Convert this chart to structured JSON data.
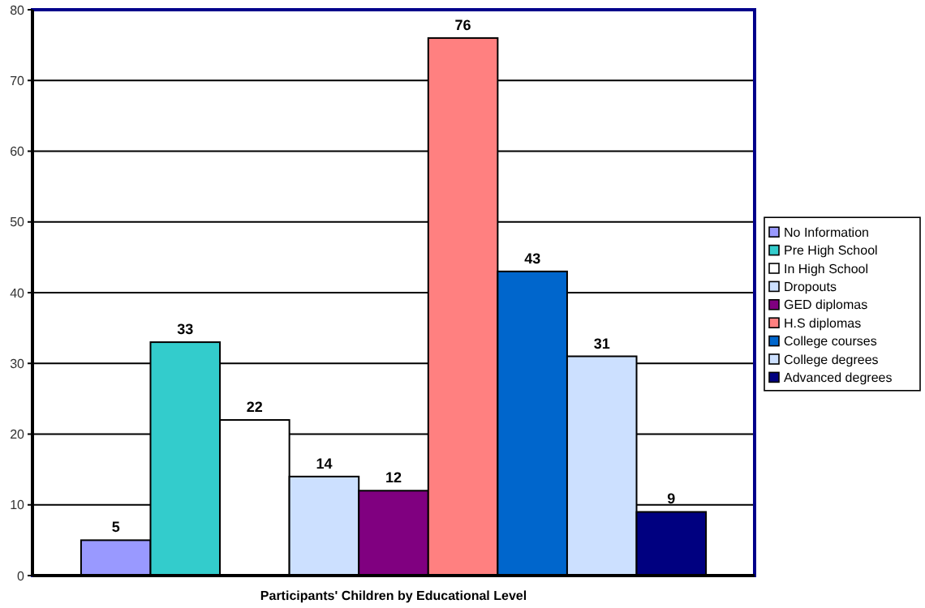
{
  "chart_data": {
    "type": "bar",
    "xlabel": "Participants' Children by Educational Level",
    "categories": [
      null
    ],
    "series": [
      {
        "name": "No Information",
        "color": "#9999ff",
        "values": [
          5
        ]
      },
      {
        "name": "Pre High School",
        "color": "#33cccc",
        "values": [
          33
        ]
      },
      {
        "name": "In High School",
        "color": "#ffffff",
        "values": [
          22
        ]
      },
      {
        "name": "Dropouts",
        "color": "#cce0ff",
        "values": [
          14
        ]
      },
      {
        "name": "GED diplomas",
        "color": "#800080",
        "values": [
          12
        ]
      },
      {
        "name": "H.S diplomas",
        "color": "#ff8080",
        "values": [
          76
        ]
      },
      {
        "name": "College courses",
        "color": "#0066cc",
        "values": [
          43
        ]
      },
      {
        "name": "College degrees",
        "color": "#cce0ff",
        "values": [
          31
        ]
      },
      {
        "name": "Advanced degrees",
        "color": "#000080",
        "values": [
          9
        ]
      }
    ],
    "ylim": [
      0,
      80
    ],
    "yticks": [
      0,
      10,
      20,
      30,
      40,
      50,
      60,
      70,
      80
    ],
    "grid": "y",
    "legend": "right",
    "data_labels": true
  }
}
